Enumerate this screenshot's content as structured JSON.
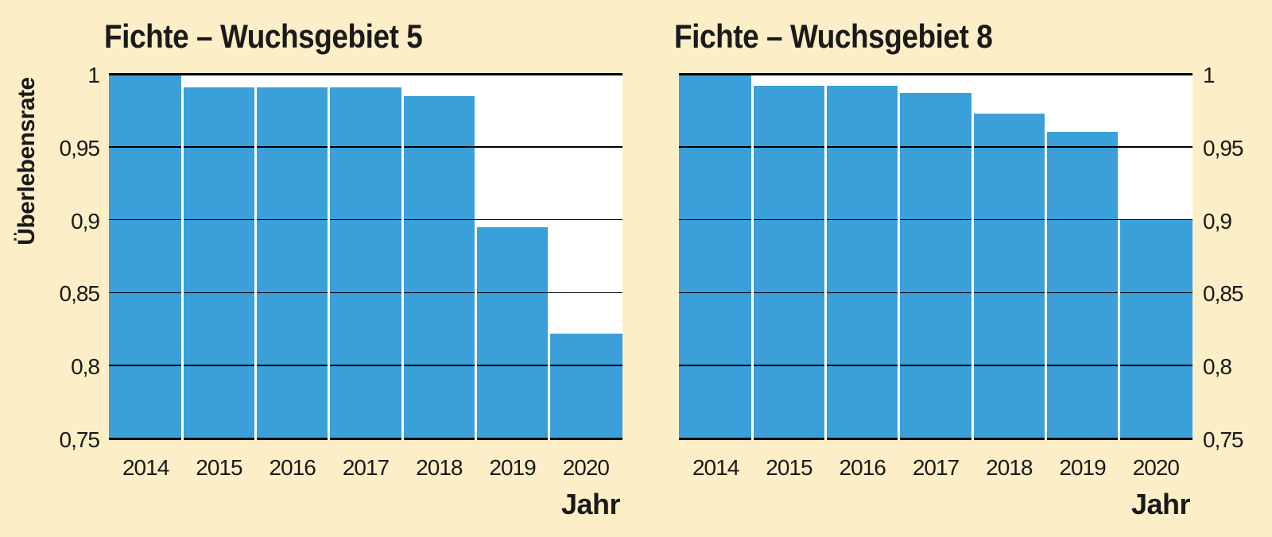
{
  "colors": {
    "background": "#FCEEC6",
    "plot_background": "#FFFFFF",
    "bar": "#3BA0DA",
    "gridline": "#000000",
    "text": "#1A1A1A"
  },
  "chart_data": [
    {
      "type": "bar",
      "title": "Fichte – Wuchsgebiet 5",
      "ylabel": "Überlebensrate",
      "xlabel": "Jahr",
      "categories": [
        "2014",
        "2015",
        "2016",
        "2017",
        "2018",
        "2019",
        "2020"
      ],
      "values": [
        1.0,
        0.991,
        0.991,
        0.991,
        0.985,
        0.895,
        0.822
      ],
      "ylim": [
        0.75,
        1.0
      ],
      "ytick_values": [
        1,
        0.95,
        0.9,
        0.85,
        0.8,
        0.75
      ],
      "ytick_labels": [
        "1",
        "0,95",
        "0,9",
        "0,85",
        "0,8",
        "0,75"
      ],
      "ytick_side": "left",
      "grid": true,
      "legend": false
    },
    {
      "type": "bar",
      "title": "Fichte – Wuchsgebiet 8",
      "ylabel": "",
      "xlabel": "Jahr",
      "categories": [
        "2014",
        "2015",
        "2016",
        "2017",
        "2018",
        "2019",
        "2020"
      ],
      "values": [
        1.0,
        0.992,
        0.992,
        0.987,
        0.973,
        0.96,
        0.9
      ],
      "ylim": [
        0.75,
        1.0
      ],
      "ytick_values": [
        1,
        0.95,
        0.9,
        0.85,
        0.8,
        0.75
      ],
      "ytick_labels": [
        "1",
        "0,95",
        "0,9",
        "0,85",
        "0,8",
        "0,75"
      ],
      "ytick_side": "right",
      "grid": true,
      "legend": false
    }
  ]
}
